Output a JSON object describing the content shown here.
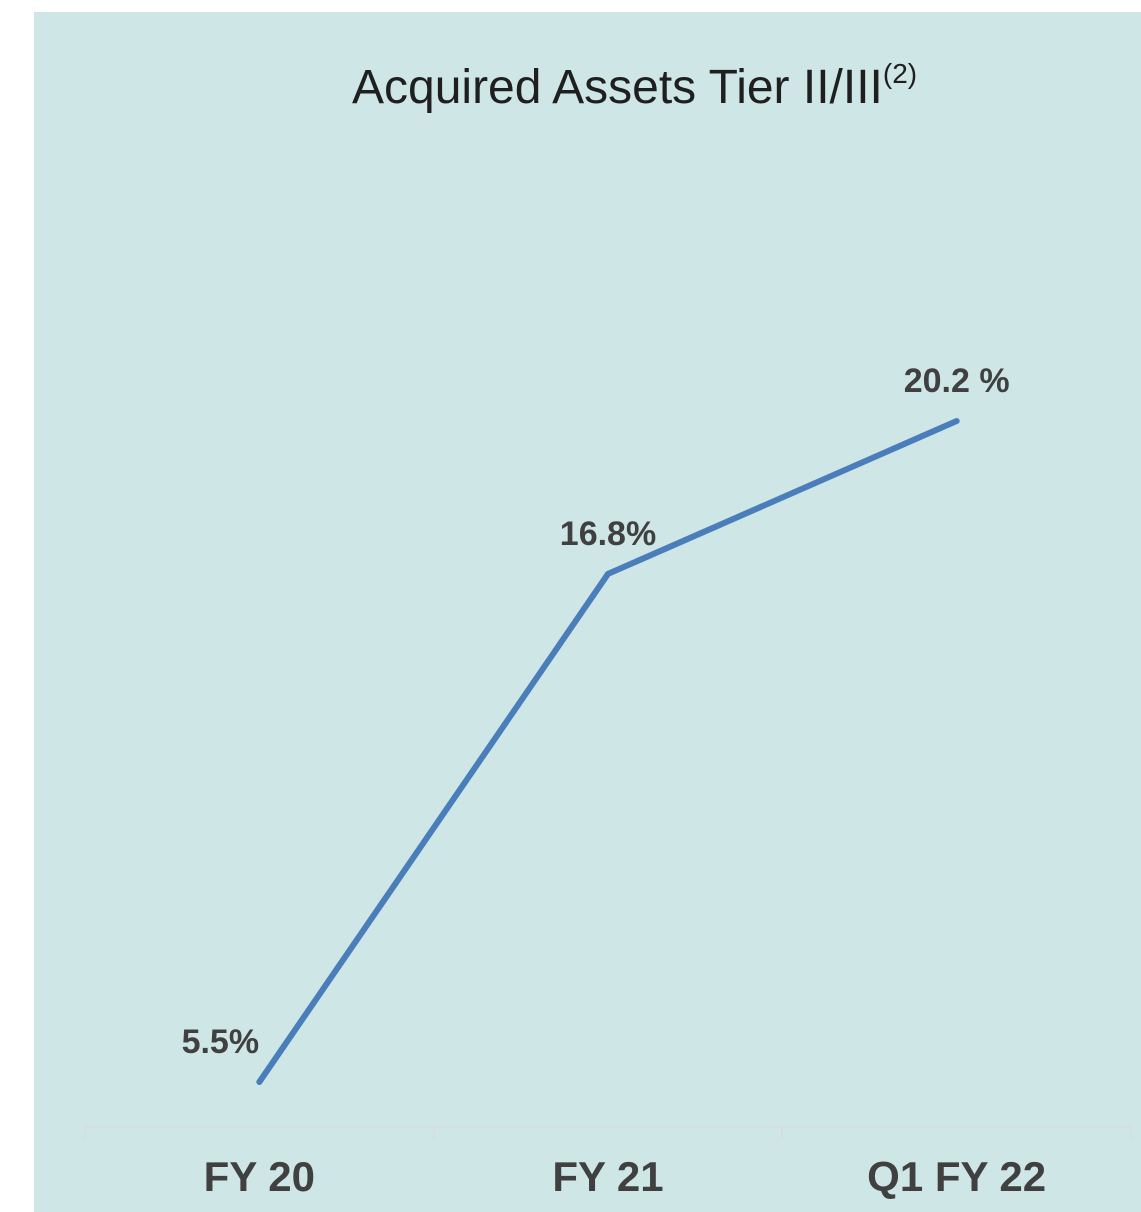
{
  "chart_data": {
    "type": "line",
    "title": "Acquired Assets Tier II/III",
    "title_note": "(2)",
    "categories": [
      "FY 20",
      "FY 21",
      "Q1 FY 22"
    ],
    "series": [
      {
        "color": "#4a7ebb",
        "values": [
          5.5,
          16.8,
          20.2
        ],
        "value_labels": [
          "5.5%",
          "16.8%",
          "20.2 %"
        ]
      }
    ]
  }
}
